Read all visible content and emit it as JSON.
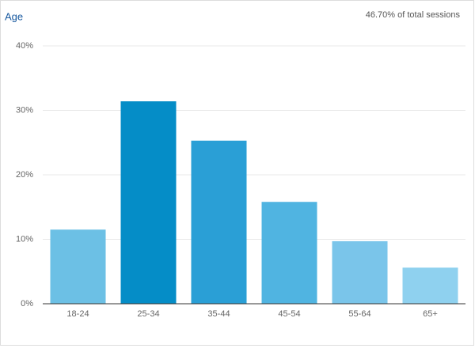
{
  "chart_data": {
    "type": "bar",
    "title": "Age",
    "subtitle": "46.70% of total sessions",
    "categories": [
      "18-24",
      "25-34",
      "35-44",
      "45-54",
      "55-64",
      "65+"
    ],
    "values": [
      11.5,
      31.4,
      25.3,
      15.8,
      9.7,
      5.6
    ],
    "colors": [
      "#6cc0e5",
      "#058dc7",
      "#2a9fd6",
      "#50b4e1",
      "#7ac5ea",
      "#8fd1ef"
    ],
    "ylim": [
      0,
      40
    ],
    "yticks": [
      {
        "value": 0,
        "label": "0%"
      },
      {
        "value": 10,
        "label": "10%"
      },
      {
        "value": 20,
        "label": "20%"
      },
      {
        "value": 30,
        "label": "30%"
      },
      {
        "value": 40,
        "label": "40%"
      }
    ],
    "grid": true
  }
}
